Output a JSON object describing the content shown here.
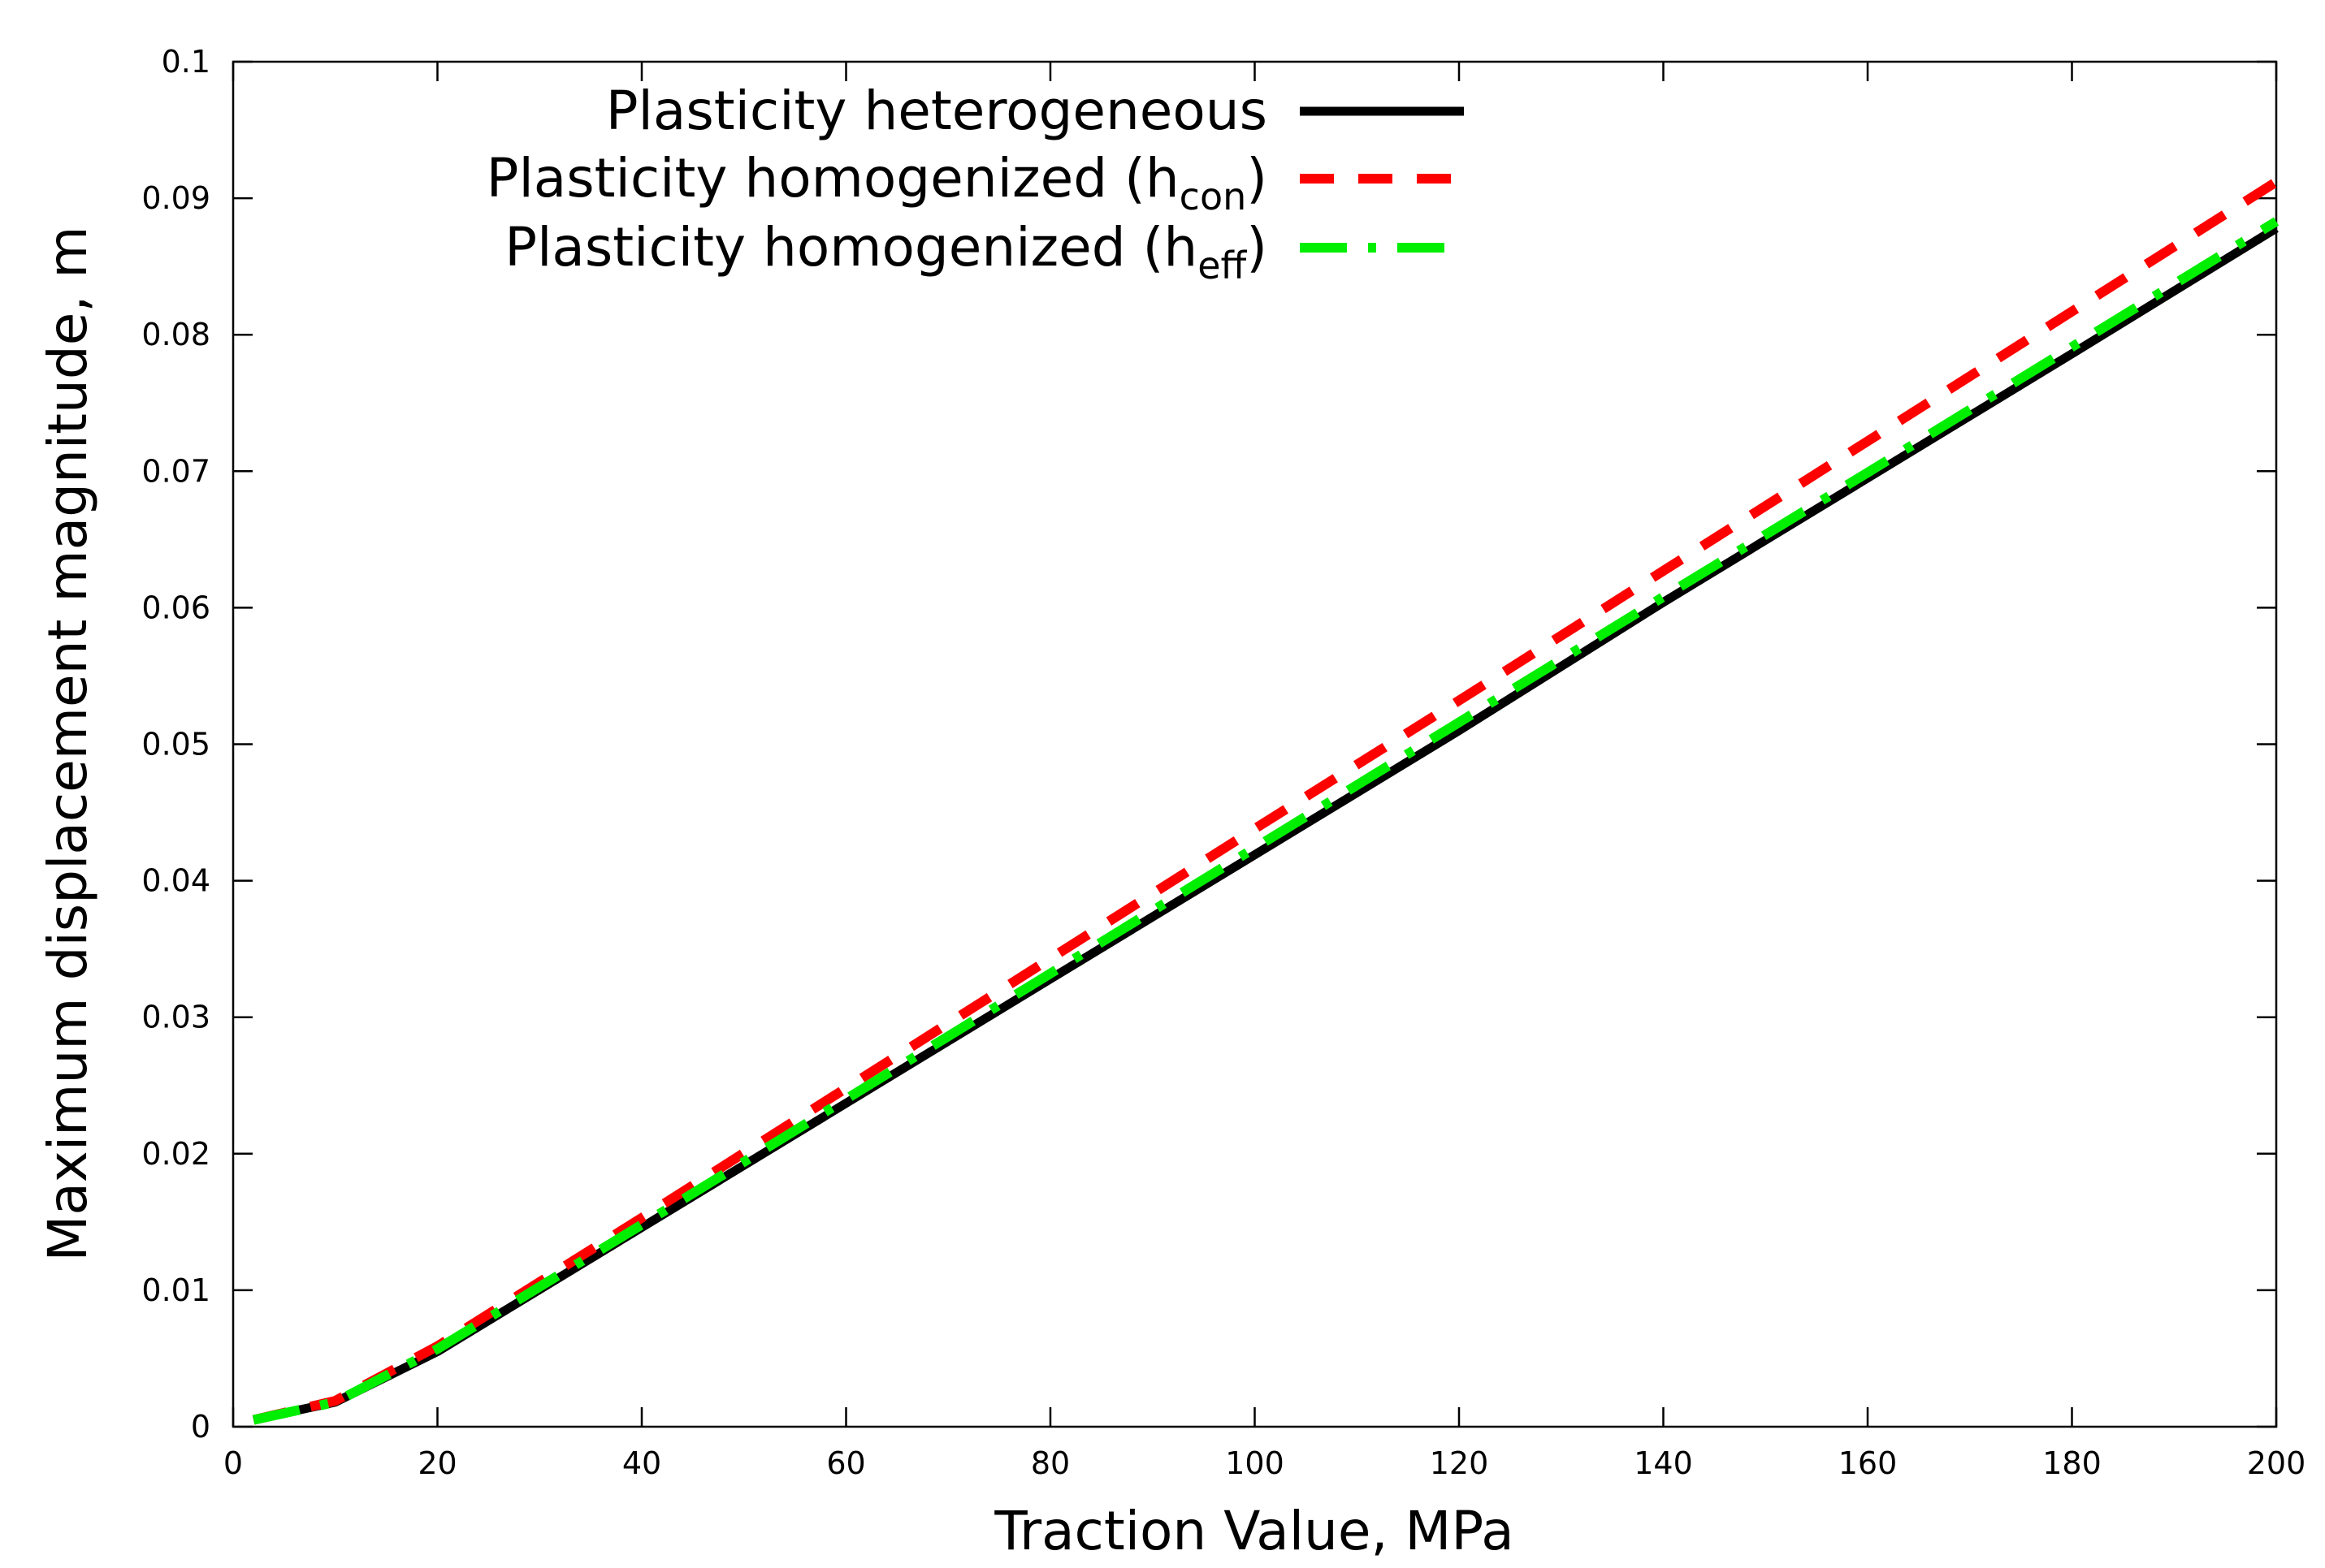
{
  "chart_data": {
    "type": "line",
    "title": "",
    "xlabel": "Traction Value, MPa",
    "ylabel": "Maximum displacement magnitude, m",
    "xlim": [
      0,
      200
    ],
    "ylim": [
      0,
      0.1
    ],
    "xticks": [
      0,
      20,
      40,
      60,
      80,
      100,
      120,
      140,
      160,
      180,
      200
    ],
    "yticks": [
      0,
      0.01,
      0.02,
      0.03,
      0.04,
      0.05,
      0.06,
      0.07,
      0.08,
      0.09,
      0.1
    ],
    "xtick_labels": [
      "0",
      "20",
      "40",
      "60",
      "80",
      "100",
      "120",
      "140",
      "160",
      "180",
      "200"
    ],
    "ytick_labels": [
      "0",
      "0.01",
      "0.02",
      "0.03",
      "0.04",
      "0.05",
      "0.06",
      "0.07",
      "0.08",
      "0.09",
      "0.1"
    ],
    "grid": false,
    "legend_position": "top-center",
    "series": [
      {
        "name": "Plasticity heterogeneous",
        "legend_main": "Plasticity heterogeneous",
        "legend_sub": "",
        "legend_tail": "",
        "color": "#000000",
        "style": "solid",
        "x": [
          2,
          10,
          20,
          40,
          60,
          80,
          100,
          120,
          140,
          160,
          180,
          200
        ],
        "y": [
          0.0005,
          0.0018,
          0.0055,
          0.0146,
          0.0237,
          0.0328,
          0.0419,
          0.051,
          0.0604,
          0.0695,
          0.0786,
          0.0878
        ]
      },
      {
        "name": "Plasticity homogenized (hcon)",
        "legend_main": "Plasticity homogenized (h",
        "legend_sub": "con",
        "legend_tail": ")",
        "color": "#ff0000",
        "style": "dashed",
        "x": [
          2,
          10,
          20,
          40,
          60,
          80,
          100,
          120,
          140,
          160,
          180,
          200
        ],
        "y": [
          0.0005,
          0.0019,
          0.0059,
          0.0153,
          0.0248,
          0.0343,
          0.0438,
          0.0532,
          0.0627,
          0.0722,
          0.0817,
          0.0912
        ]
      },
      {
        "name": "Plasticity homogenized (heff)",
        "legend_main": "Plasticity homogenized (h",
        "legend_sub": "eff",
        "legend_tail": ")",
        "color": "#00ee00",
        "style": "dashdot",
        "x": [
          2,
          10,
          20,
          40,
          60,
          80,
          100,
          120,
          140,
          160,
          180,
          200
        ],
        "y": [
          0.0005,
          0.0018,
          0.0057,
          0.0148,
          0.024,
          0.0332,
          0.0424,
          0.0516,
          0.0608,
          0.0699,
          0.0791,
          0.0883
        ]
      }
    ]
  }
}
